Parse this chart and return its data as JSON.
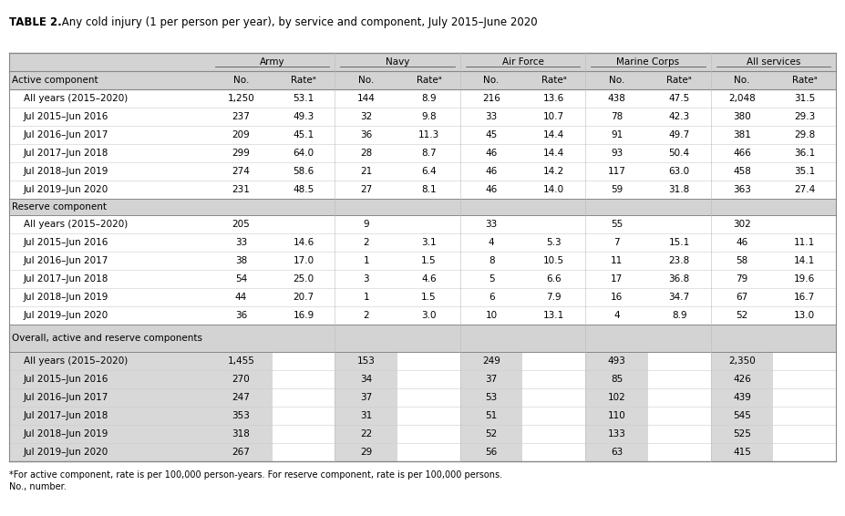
{
  "title_bold": "TABLE 2.",
  "title_regular": " Any cold injury (1 per person per year), by service and component, July 2015–June 2020",
  "col_groups": [
    "Army",
    "Navy",
    "Air Force",
    "Marine Corps",
    "All services"
  ],
  "sub_cols": [
    "No.",
    "Rateᵃ"
  ],
  "active_section_header": "Active component",
  "reserve_section_header": "Reserve component",
  "overall_section_header": "Overall, active and reserve components",
  "active_rows": [
    [
      "All years (2015–2020)",
      "1,250",
      "53.1",
      "144",
      "8.9",
      "216",
      "13.6",
      "438",
      "47.5",
      "2,048",
      "31.5"
    ],
    [
      "Jul 2015–Jun 2016",
      "237",
      "49.3",
      "32",
      "9.8",
      "33",
      "10.7",
      "78",
      "42.3",
      "380",
      "29.3"
    ],
    [
      "Jul 2016–Jun 2017",
      "209",
      "45.1",
      "36",
      "11.3",
      "45",
      "14.4",
      "91",
      "49.7",
      "381",
      "29.8"
    ],
    [
      "Jul 2017–Jun 2018",
      "299",
      "64.0",
      "28",
      "8.7",
      "46",
      "14.4",
      "93",
      "50.4",
      "466",
      "36.1"
    ],
    [
      "Jul 2018–Jun 2019",
      "274",
      "58.6",
      "21",
      "6.4",
      "46",
      "14.2",
      "117",
      "63.0",
      "458",
      "35.1"
    ],
    [
      "Jul 2019–Jun 2020",
      "231",
      "48.5",
      "27",
      "8.1",
      "46",
      "14.0",
      "59",
      "31.8",
      "363",
      "27.4"
    ]
  ],
  "reserve_rows": [
    [
      "All years (2015–2020)",
      "205",
      "",
      "9",
      "",
      "33",
      "",
      "55",
      "",
      "302",
      ""
    ],
    [
      "Jul 2015–Jun 2016",
      "33",
      "14.6",
      "2",
      "3.1",
      "4",
      "5.3",
      "7",
      "15.1",
      "46",
      "11.1"
    ],
    [
      "Jul 2016–Jun 2017",
      "38",
      "17.0",
      "1",
      "1.5",
      "8",
      "10.5",
      "11",
      "23.8",
      "58",
      "14.1"
    ],
    [
      "Jul 2017–Jun 2018",
      "54",
      "25.0",
      "3",
      "4.6",
      "5",
      "6.6",
      "17",
      "36.8",
      "79",
      "19.6"
    ],
    [
      "Jul 2018–Jun 2019",
      "44",
      "20.7",
      "1",
      "1.5",
      "6",
      "7.9",
      "16",
      "34.7",
      "67",
      "16.7"
    ],
    [
      "Jul 2019–Jun 2020",
      "36",
      "16.9",
      "2",
      "3.0",
      "10",
      "13.1",
      "4",
      "8.9",
      "52",
      "13.0"
    ]
  ],
  "overall_rows": [
    [
      "All years (2015–2020)",
      "1,455",
      "",
      "153",
      "",
      "249",
      "",
      "493",
      "",
      "2,350",
      ""
    ],
    [
      "Jul 2015–Jun 2016",
      "270",
      "",
      "34",
      "",
      "37",
      "",
      "85",
      "",
      "426",
      ""
    ],
    [
      "Jul 2016–Jun 2017",
      "247",
      "",
      "37",
      "",
      "53",
      "",
      "102",
      "",
      "439",
      ""
    ],
    [
      "Jul 2017–Jun 2018",
      "353",
      "",
      "31",
      "",
      "51",
      "",
      "110",
      "",
      "545",
      ""
    ],
    [
      "Jul 2018–Jun 2019",
      "318",
      "",
      "22",
      "",
      "52",
      "",
      "133",
      "",
      "525",
      ""
    ],
    [
      "Jul 2019–Jun 2020",
      "267",
      "",
      "29",
      "",
      "56",
      "",
      "63",
      "",
      "415",
      ""
    ]
  ],
  "footnote_line1": "*For active component, rate is per 100,000 person-years. For reserve component, rate is per 100,000 persons.",
  "footnote_line2": "No., number.",
  "col_header_bg": "#d3d3d3",
  "section_header_bg": "#d3d3d3",
  "overall_section_bg": "#d3d3d3",
  "overall_row_bg": "#d8d8d8",
  "white_bg": "#ffffff",
  "row_alt_bg": "#f8f8f8",
  "border_color": "#888888",
  "light_line_color": "#cccccc"
}
